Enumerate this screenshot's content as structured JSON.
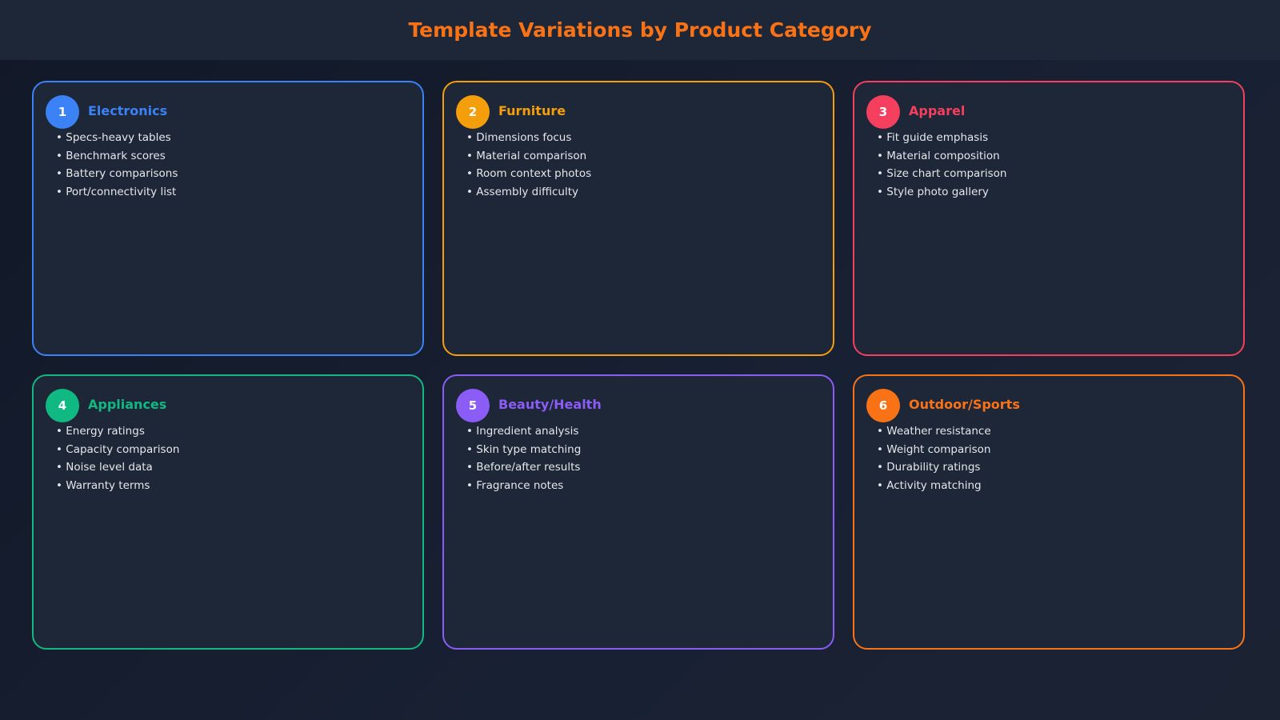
{
  "title": "Template Variations by Product Category",
  "title_color": "#f97316",
  "cards": [
    {
      "number": "1",
      "title": "Electronics",
      "color": "#3b82f6",
      "items": [
        "Specs-heavy tables",
        "Benchmark scores",
        "Battery comparisons",
        "Port/connectivity list"
      ]
    },
    {
      "number": "2",
      "title": "Furniture",
      "color": "#f59e0b",
      "items": [
        "Dimensions focus",
        "Material comparison",
        "Room context photos",
        "Assembly difficulty"
      ]
    },
    {
      "number": "3",
      "title": "Apparel",
      "color": "#f43f5e",
      "items": [
        "Fit guide emphasis",
        "Material composition",
        "Size chart comparison",
        "Style photo gallery"
      ]
    },
    {
      "number": "4",
      "title": "Appliances",
      "color": "#10b981",
      "items": [
        "Energy ratings",
        "Capacity comparison",
        "Noise level data",
        "Warranty terms"
      ]
    },
    {
      "number": "5",
      "title": "Beauty/Health",
      "color": "#8b5cf6",
      "items": [
        "Ingredient analysis",
        "Skin type matching",
        "Before/after results",
        "Fragrance notes"
      ]
    },
    {
      "number": "6",
      "title": "Outdoor/Sports",
      "color": "#f97316",
      "items": [
        "Weather resistance",
        "Weight comparison",
        "Durability ratings",
        "Activity matching"
      ]
    }
  ]
}
